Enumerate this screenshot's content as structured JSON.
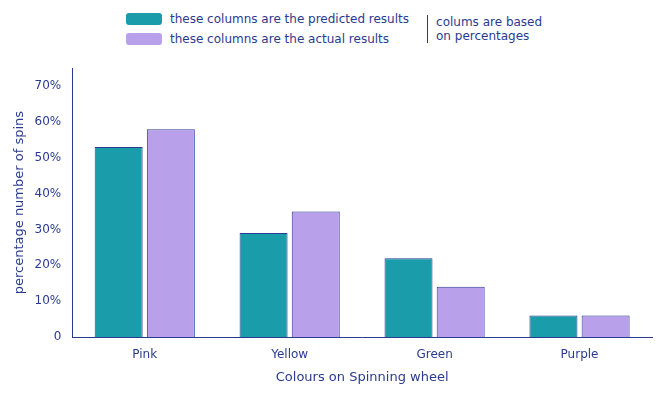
{
  "chart_data": {
    "type": "bar",
    "categories": [
      "Pink",
      "Yellow",
      "Green",
      "Purple"
    ],
    "series": [
      {
        "name": "these columns are the predicted results",
        "color": "#1b9cab",
        "values": [
          53,
          29,
          22,
          6
        ]
      },
      {
        "name": "these columns are the actual results",
        "color": "#b8a0ea",
        "values": [
          58,
          35,
          14,
          6
        ]
      }
    ],
    "annotations": [
      "colums are based on percentages"
    ],
    "x_label": "Colours on Spinning wheel",
    "y_label": "percentage number of spins",
    "ylim": [
      0,
      75
    ],
    "yticks": [
      0,
      {
        "value": 10,
        "label": "10%"
      },
      {
        "value": 20,
        "label": "20%"
      },
      {
        "value": 30,
        "label": "30%"
      },
      {
        "value": 40,
        "label": "40%"
      },
      {
        "value": 50,
        "label": "50%"
      },
      {
        "value": 60,
        "label": "60%"
      },
      {
        "value": 70,
        "label": "70%"
      }
    ],
    "grid": false,
    "legend": "top"
  }
}
